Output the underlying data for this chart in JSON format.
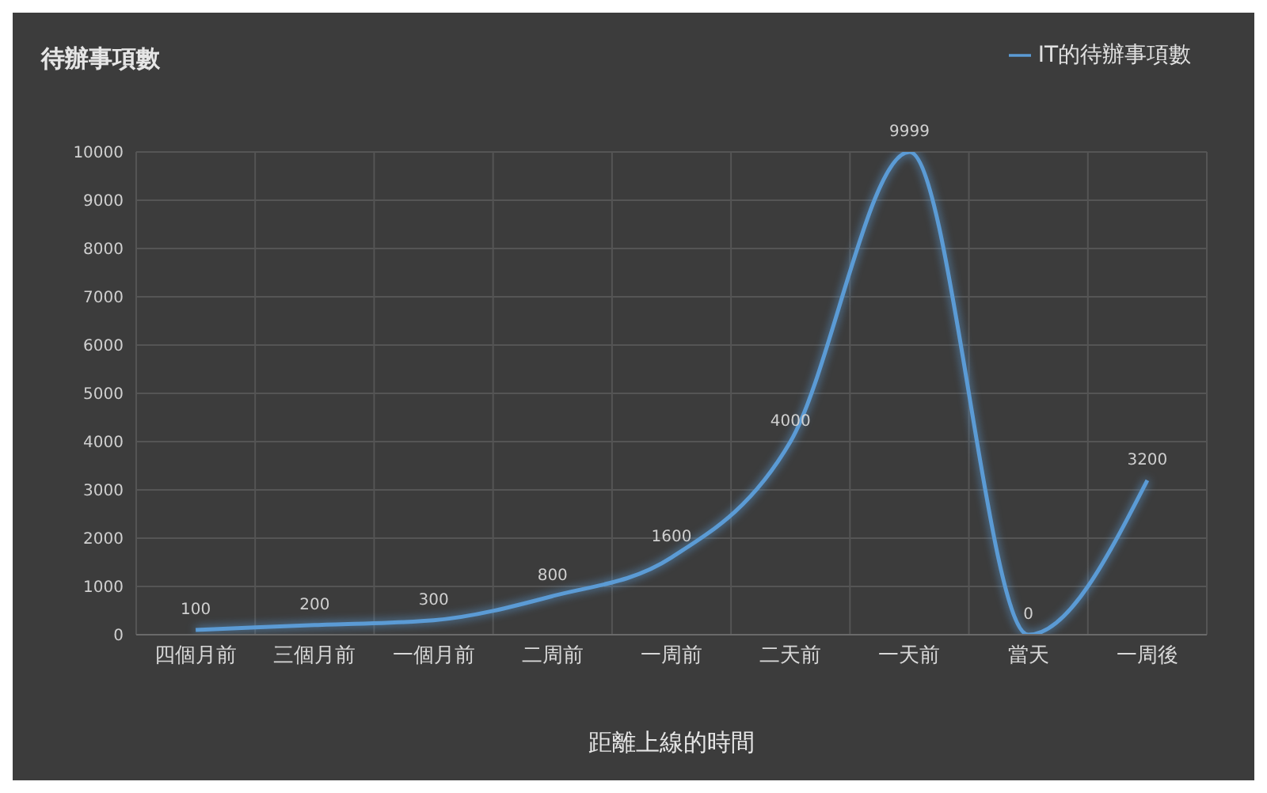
{
  "chart_data": {
    "type": "line",
    "ylabel": "待辦事項數",
    "xlabel": "距離上線的時間",
    "categories": [
      "四個月前",
      "三個月前",
      "一個月前",
      "二周前",
      "一周前",
      "二天前",
      "一天前",
      "當天",
      "一周後"
    ],
    "series": [
      {
        "name": "IT的待辦事項數",
        "color": "#5b9bd5",
        "values": [
          100,
          200,
          300,
          800,
          1600,
          4000,
          9999,
          0,
          3200
        ]
      }
    ],
    "ylim": [
      0,
      10000
    ],
    "yticks": [
      0,
      1000,
      2000,
      3000,
      4000,
      5000,
      6000,
      7000,
      8000,
      9000,
      10000
    ],
    "grid": true,
    "legend": "top right",
    "data_labels": true,
    "marker": "none",
    "line_style": "solid"
  }
}
